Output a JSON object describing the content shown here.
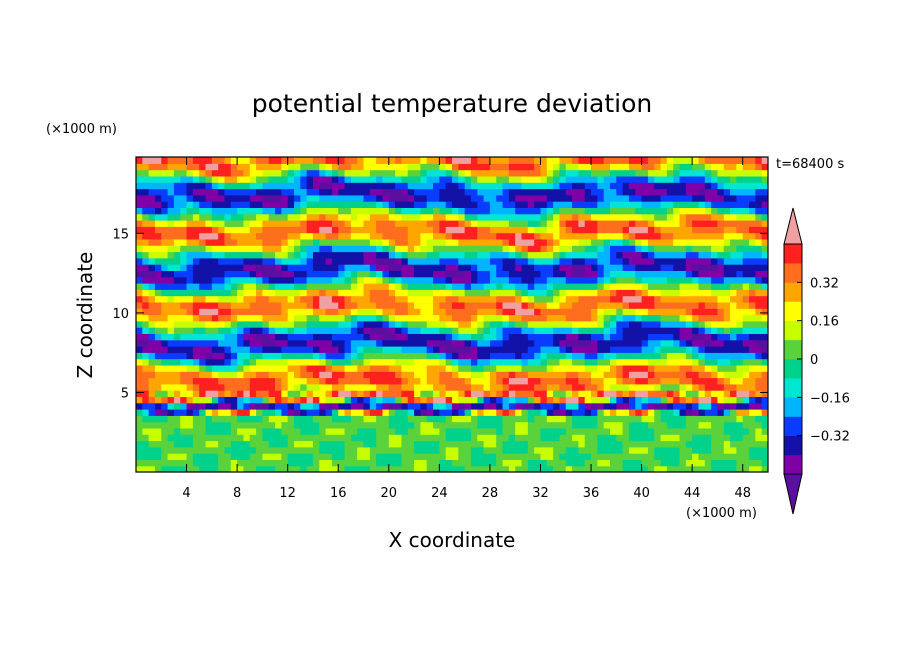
{
  "chart_data": {
    "type": "heatmap",
    "title": "potential temperature deviation",
    "xlabel": "X coordinate",
    "ylabel": "Z coordinate",
    "x_units": "(×1000 m)",
    "y_units": "(×1000 m)",
    "time_label": "t=68400 s",
    "xlim": [
      0,
      50
    ],
    "ylim": [
      0,
      19.8
    ],
    "x_ticks": [
      4,
      8,
      12,
      16,
      20,
      24,
      28,
      32,
      36,
      40,
      44,
      48
    ],
    "y_ticks": [
      5,
      10,
      15
    ],
    "colorbar": {
      "levels": [
        -0.48,
        -0.4,
        -0.32,
        -0.24,
        -0.16,
        -0.08,
        0,
        0.08,
        0.16,
        0.24,
        0.32,
        0.4,
        0.48
      ],
      "tick_values": [
        0.32,
        0.16,
        0,
        -0.16,
        -0.32
      ],
      "tick_labels": [
        "0.32",
        "0.16",
        "0",
        "-0.16",
        "-0.32"
      ],
      "colors": [
        "#5a0fa0",
        "#8000a8",
        "#1212a8",
        "#0a3cff",
        "#00b4ff",
        "#00e6d2",
        "#00d28c",
        "#5ad23c",
        "#c8ff00",
        "#ffff00",
        "#ffa500",
        "#ff6e1e",
        "#ff2020",
        "#f0a0a0"
      ],
      "extend": "both"
    },
    "description_bands": [
      {
        "z_range": [
          0,
          3.5
        ],
        "character": "weak fluctuations, mostly near zero"
      },
      {
        "z_range": [
          3.5,
          5
        ],
        "character": "strong negative and positive streaks"
      },
      {
        "z_range": [
          5,
          19.8
        ],
        "character": "layered alternating positive/negative filaments"
      }
    ]
  },
  "legend_title": ""
}
